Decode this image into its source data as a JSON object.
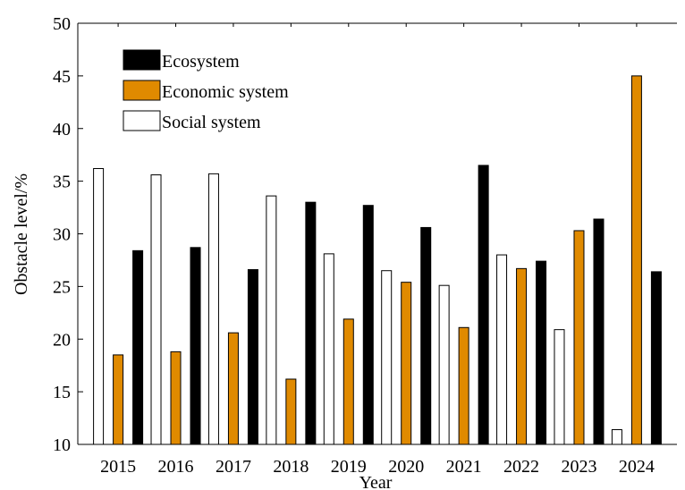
{
  "chart_data": {
    "type": "bar",
    "xlabel": "Year",
    "ylabel": "Obstacle level/%",
    "ylim": [
      10,
      50
    ],
    "yticks": [
      10,
      15,
      20,
      25,
      30,
      35,
      40,
      45,
      50
    ],
    "categories": [
      "2015",
      "2016",
      "2017",
      "2018",
      "2019",
      "2020",
      "2021",
      "2022",
      "2023",
      "2024"
    ],
    "series": [
      {
        "name": "Social system",
        "color": "#ffffff",
        "values": [
          36.2,
          35.6,
          35.7,
          33.6,
          28.1,
          26.5,
          25.1,
          28.0,
          20.9,
          11.4
        ]
      },
      {
        "name": "Economic system",
        "color": "#e08a00",
        "values": [
          18.5,
          18.8,
          20.6,
          16.2,
          21.9,
          25.4,
          21.1,
          26.7,
          30.3,
          45.0
        ]
      },
      {
        "name": "Ecosystem",
        "color": "#000000",
        "values": [
          28.4,
          28.7,
          26.6,
          33.0,
          32.7,
          30.6,
          36.5,
          27.4,
          31.4,
          26.4
        ]
      }
    ],
    "legend_order": [
      "Ecosystem",
      "Economic system",
      "Social system"
    ],
    "legend_position": "top-left",
    "grid": false
  }
}
